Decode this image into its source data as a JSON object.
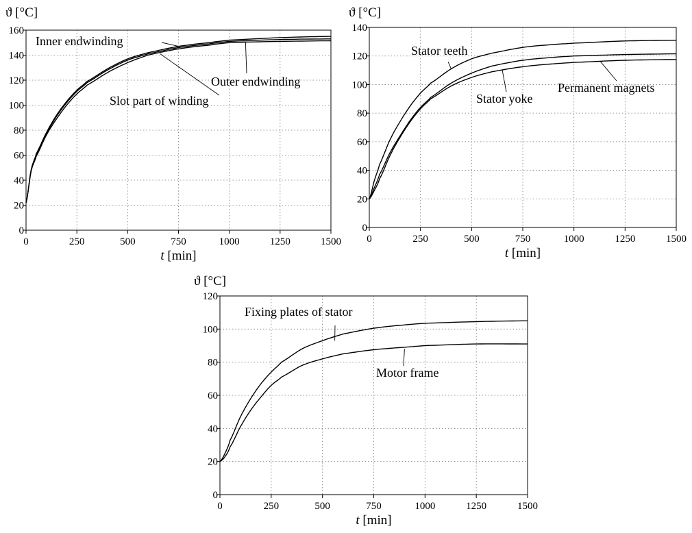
{
  "chart_data": [
    {
      "type": "line",
      "xlabel_var": "t",
      "xlabel_unit": "[min]",
      "ylabel": "ϑ [°C]",
      "xlim": [
        0,
        1500
      ],
      "ylim": [
        0,
        160
      ],
      "xticks": [
        0,
        250,
        500,
        750,
        1000,
        1250,
        1500
      ],
      "yticks": [
        0,
        20,
        40,
        60,
        80,
        100,
        120,
        140,
        160
      ],
      "grid": true,
      "series": [
        {
          "name": "Inner endwinding",
          "x": [
            0,
            25,
            50,
            100,
            150,
            200,
            250,
            300,
            400,
            500,
            600,
            750,
            900,
            1000,
            1250,
            1500
          ],
          "y": [
            22,
            48,
            60,
            77,
            91,
            102,
            111,
            118,
            128,
            136,
            141,
            146,
            149,
            151,
            152.5,
            153
          ]
        },
        {
          "name": "Slot part of winding",
          "x": [
            0,
            25,
            50,
            100,
            150,
            200,
            250,
            300,
            400,
            500,
            600,
            750,
            900,
            1000,
            1250,
            1500
          ],
          "y": [
            22,
            47,
            59,
            76,
            89,
            100,
            109,
            116,
            126,
            134,
            140,
            145,
            148,
            150,
            151,
            151.5
          ]
        },
        {
          "name": "Outer endwinding",
          "x": [
            0,
            25,
            50,
            100,
            150,
            200,
            250,
            300,
            400,
            500,
            600,
            750,
            900,
            1000,
            1250,
            1500
          ],
          "y": [
            22,
            48,
            61,
            78,
            92,
            103,
            112,
            119,
            129,
            137,
            142,
            147,
            150,
            152,
            154,
            155
          ]
        }
      ],
      "annotations": [
        {
          "text": "Inner endwinding",
          "x": 752,
          "y": 147
        },
        {
          "text": "Outer endwinding",
          "x": 1080,
          "y": 150
        },
        {
          "text": "Slot part of winding",
          "x": 660,
          "y": 141
        }
      ]
    },
    {
      "type": "line",
      "xlabel_var": "t",
      "xlabel_unit": "[min]",
      "ylabel": "ϑ [°C]",
      "xlim": [
        0,
        1500
      ],
      "ylim": [
        0,
        140
      ],
      "xticks": [
        0,
        250,
        500,
        750,
        1000,
        1250,
        1500
      ],
      "yticks": [
        0,
        20,
        40,
        60,
        80,
        100,
        120,
        140
      ],
      "grid": true,
      "series": [
        {
          "name": "Stator teeth",
          "x": [
            0,
            25,
            50,
            100,
            150,
            200,
            250,
            300,
            400,
            500,
            600,
            750,
            900,
            1000,
            1250,
            1500
          ],
          "y": [
            20,
            33,
            44,
            61,
            74,
            85,
            94,
            101,
            111,
            118,
            122,
            126,
            128,
            129,
            130.5,
            131
          ]
        },
        {
          "name": "Stator yoke",
          "x": [
            0,
            25,
            50,
            100,
            150,
            200,
            250,
            300,
            400,
            500,
            600,
            750,
            900,
            1000,
            1250,
            1500
          ],
          "y": [
            20,
            28,
            37,
            52,
            64,
            75,
            84,
            91,
            101,
            108,
            113,
            117,
            119,
            120,
            121,
            121.5
          ]
        },
        {
          "name": "Permanent magnets",
          "x": [
            0,
            25,
            50,
            100,
            150,
            200,
            250,
            300,
            400,
            500,
            600,
            750,
            900,
            1000,
            1250,
            1500
          ],
          "y": [
            20,
            26,
            34,
            50,
            63,
            74,
            83,
            90,
            99,
            105,
            109,
            112.5,
            114.5,
            115.5,
            117,
            117.5
          ]
        }
      ],
      "annotations": [
        {
          "text": "Stator teeth",
          "x": 400,
          "y": 111
        },
        {
          "text": "Stator yoke",
          "x": 650,
          "y": 110
        },
        {
          "text": "Permanent magnets",
          "x": 1130,
          "y": 116
        }
      ]
    },
    {
      "type": "line",
      "xlabel_var": "t",
      "xlabel_unit": "[min]",
      "ylabel": "ϑ [°C]",
      "xlim": [
        0,
        1500
      ],
      "ylim": [
        0,
        120
      ],
      "xticks": [
        0,
        250,
        500,
        750,
        1000,
        1250,
        1500
      ],
      "yticks": [
        0,
        20,
        40,
        60,
        80,
        100,
        120
      ],
      "grid": true,
      "series": [
        {
          "name": "Fixing plates of stator",
          "x": [
            0,
            25,
            50,
            100,
            150,
            200,
            250,
            300,
            400,
            500,
            600,
            750,
            900,
            1000,
            1250,
            1500
          ],
          "y": [
            20,
            25,
            33,
            47,
            58,
            67,
            74,
            80,
            88,
            93,
            97,
            100.5,
            102.5,
            103.5,
            104.5,
            105
          ]
        },
        {
          "name": "Motor frame",
          "x": [
            0,
            25,
            50,
            100,
            150,
            200,
            250,
            300,
            400,
            500,
            600,
            750,
            900,
            1000,
            1250,
            1500
          ],
          "y": [
            20,
            23,
            29,
            41,
            51,
            59,
            66,
            71,
            78,
            82,
            85,
            87.5,
            89,
            90,
            91,
            91
          ]
        }
      ],
      "annotations": [
        {
          "text": "Fixing plates of stator",
          "x": 560,
          "y": 93
        },
        {
          "text": "Motor frame",
          "x": 900,
          "y": 88
        }
      ]
    }
  ]
}
